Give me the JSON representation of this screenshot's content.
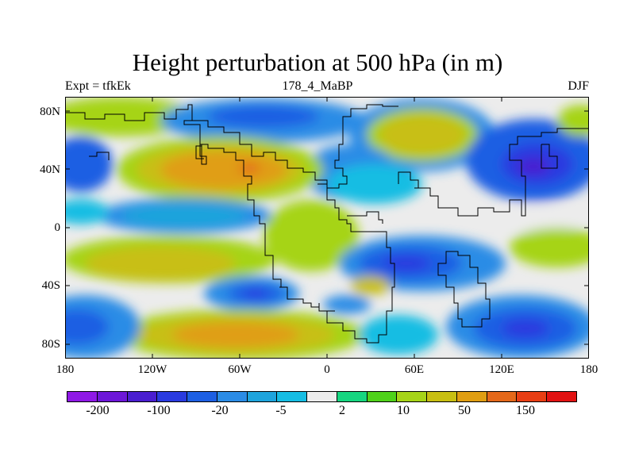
{
  "title": "Height perturbation at 500 hPa (in m)",
  "subtitle_left": "Expt = tfkEk",
  "subtitle_center": "178_4_MaBP",
  "subtitle_right": "DJF",
  "y_ticks": [
    "80N",
    "40N",
    "0",
    "40S",
    "80S"
  ],
  "x_ticks": [
    "180",
    "120W",
    "60W",
    "0",
    "60E",
    "120E",
    "180"
  ],
  "colorbar": {
    "colors": [
      "#8f19e6",
      "#6d17d8",
      "#4a1ed0",
      "#2a3be0",
      "#1d5fe3",
      "#2b8ce6",
      "#1ea4dc",
      "#16bde3",
      "#ececec",
      "#16d680",
      "#4fd21a",
      "#a6d418",
      "#c8bf12",
      "#e09e12",
      "#e4681a",
      "#e83e14",
      "#e21212"
    ],
    "labels": [
      "-200",
      "-100",
      "-20",
      "-5",
      "2",
      "10",
      "50",
      "150"
    ]
  }
}
